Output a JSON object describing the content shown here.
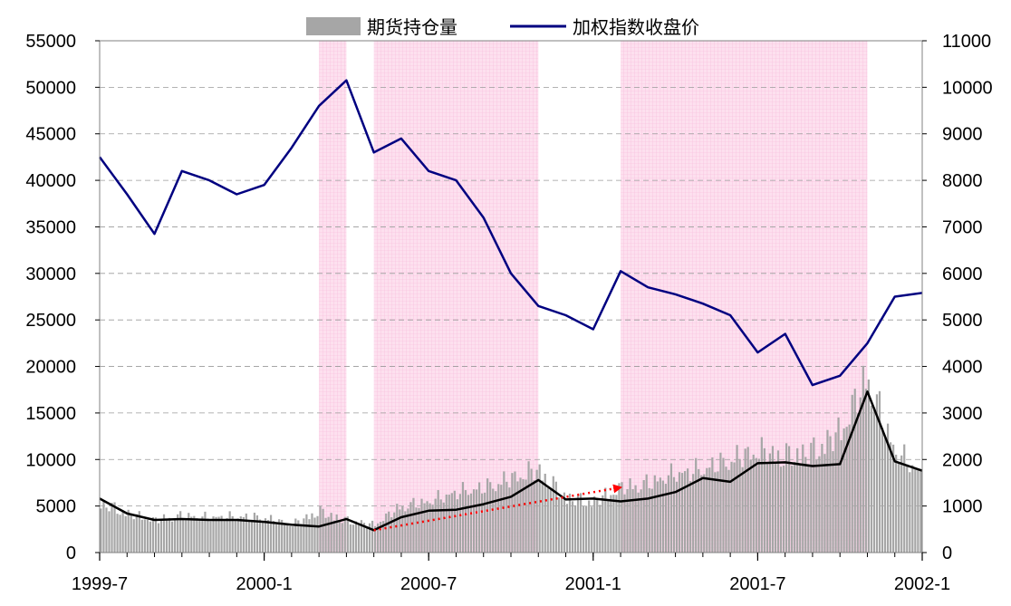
{
  "chart_data": {
    "type": "bar+line",
    "legend": {
      "position": "top-center",
      "items": [
        {
          "label": "期货持仓量",
          "kind": "bar",
          "color": "#a6a6a6"
        },
        {
          "label": "加权指数收盘价",
          "kind": "line",
          "color": "#000080"
        }
      ]
    },
    "x_axis": {
      "start": "1999-7",
      "end": "2002-1",
      "tick_labels": [
        "1999-7",
        "2000-1",
        "2000-7",
        "2001-1",
        "2001-7",
        "2002-1"
      ]
    },
    "y_left": {
      "min": 0,
      "max": 55000,
      "tick_labels": [
        "0",
        "5000",
        "10000",
        "15000",
        "20000",
        "25000",
        "30000",
        "35000",
        "40000",
        "45000",
        "50000",
        "55000"
      ]
    },
    "y_right": {
      "min": 0,
      "max": 11000,
      "tick_labels": [
        "0",
        "1000",
        "2000",
        "3000",
        "4000",
        "5000",
        "6000",
        "7000",
        "8000",
        "9000",
        "10000",
        "11000"
      ]
    },
    "grid": "horizontal dashed",
    "shaded_periods": [
      {
        "from": "2000-3",
        "to": "2000-4"
      },
      {
        "from": "2000-5",
        "to": "2000-11"
      },
      {
        "from": "2001-2",
        "to": "2001-11"
      }
    ],
    "index_close": {
      "name": "加权指数收盘价",
      "axis": "right",
      "color": "#000080",
      "points": [
        [
          "1999-07",
          8500
        ],
        [
          "1999-08",
          7700
        ],
        [
          "1999-09",
          6850
        ],
        [
          "1999-10",
          8200
        ],
        [
          "1999-11",
          8000
        ],
        [
          "1999-12",
          7700
        ],
        [
          "2000-01",
          7900
        ],
        [
          "2000-02",
          8700
        ],
        [
          "2000-03",
          9600
        ],
        [
          "2000-04",
          10150
        ],
        [
          "2000-05",
          8600
        ],
        [
          "2000-06",
          8900
        ],
        [
          "2000-07",
          8200
        ],
        [
          "2000-08",
          8000
        ],
        [
          "2000-09",
          7200
        ],
        [
          "2000-10",
          6000
        ],
        [
          "2000-11",
          5300
        ],
        [
          "2000-12",
          5100
        ],
        [
          "2001-01",
          4800
        ],
        [
          "2001-02",
          6050
        ],
        [
          "2001-03",
          5700
        ],
        [
          "2001-04",
          5550
        ],
        [
          "2001-05",
          5350
        ],
        [
          "2001-06",
          5100
        ],
        [
          "2001-07",
          4300
        ],
        [
          "2001-08",
          4700
        ],
        [
          "2001-09",
          3600
        ],
        [
          "2001-10",
          3800
        ],
        [
          "2001-11",
          4500
        ],
        [
          "2001-12",
          5500
        ],
        [
          "2002-01",
          5580
        ]
      ]
    },
    "open_interest": {
      "name": "期货持仓量",
      "axis": "left",
      "color": "#a6a6a6",
      "points": [
        [
          "1999-07",
          5500
        ],
        [
          "1999-08",
          4300
        ],
        [
          "1999-09",
          3500
        ],
        [
          "1999-10",
          4000
        ],
        [
          "1999-11",
          3800
        ],
        [
          "1999-12",
          3900
        ],
        [
          "2000-01",
          3800
        ],
        [
          "2000-02",
          3000
        ],
        [
          "2000-03",
          4500
        ],
        [
          "2000-04",
          3500
        ],
        [
          "2000-05",
          3000
        ],
        [
          "2000-06",
          5000
        ],
        [
          "2000-07",
          5500
        ],
        [
          "2000-08",
          6500
        ],
        [
          "2000-09",
          7000
        ],
        [
          "2000-10",
          8000
        ],
        [
          "2000-11",
          9000
        ],
        [
          "2000-12",
          6000
        ],
        [
          "2001-01",
          5500
        ],
        [
          "2001-02",
          7000
        ],
        [
          "2001-03",
          7500
        ],
        [
          "2001-04",
          8500
        ],
        [
          "2001-05",
          9000
        ],
        [
          "2001-06",
          10000
        ],
        [
          "2001-07",
          11000
        ],
        [
          "2001-08",
          10500
        ],
        [
          "2001-09",
          11000
        ],
        [
          "2001-10",
          13000
        ],
        [
          "2001-11",
          19000
        ],
        [
          "2001-12",
          11000
        ],
        [
          "2002-01",
          8500
        ]
      ]
    },
    "open_interest_smoothed": {
      "axis": "left",
      "color": "#000000",
      "points": [
        [
          "1999-07",
          5800
        ],
        [
          "1999-08",
          4200
        ],
        [
          "1999-09",
          3500
        ],
        [
          "1999-10",
          3600
        ],
        [
          "1999-11",
          3500
        ],
        [
          "1999-12",
          3500
        ],
        [
          "2000-01",
          3300
        ],
        [
          "2000-02",
          3000
        ],
        [
          "2000-03",
          2800
        ],
        [
          "2000-04",
          3600
        ],
        [
          "2000-05",
          2400
        ],
        [
          "2000-06",
          3800
        ],
        [
          "2000-07",
          4500
        ],
        [
          "2000-08",
          4600
        ],
        [
          "2000-09",
          5200
        ],
        [
          "2000-10",
          6000
        ],
        [
          "2000-11",
          7800
        ],
        [
          "2000-12",
          5700
        ],
        [
          "2001-01",
          5800
        ],
        [
          "2001-02",
          5500
        ],
        [
          "2001-03",
          5800
        ],
        [
          "2001-04",
          6500
        ],
        [
          "2001-05",
          8000
        ],
        [
          "2001-06",
          7600
        ],
        [
          "2001-07",
          9600
        ],
        [
          "2001-08",
          9700
        ],
        [
          "2001-09",
          9300
        ],
        [
          "2001-10",
          9500
        ],
        [
          "2001-11",
          17300
        ],
        [
          "2001-12",
          9800
        ],
        [
          "2002-01",
          8800
        ]
      ]
    },
    "annotation_arrow": {
      "color": "#ff0000",
      "style": "dotted",
      "from": [
        "2000-05",
        2400
      ],
      "to": [
        "2001-02",
        7000
      ]
    }
  }
}
